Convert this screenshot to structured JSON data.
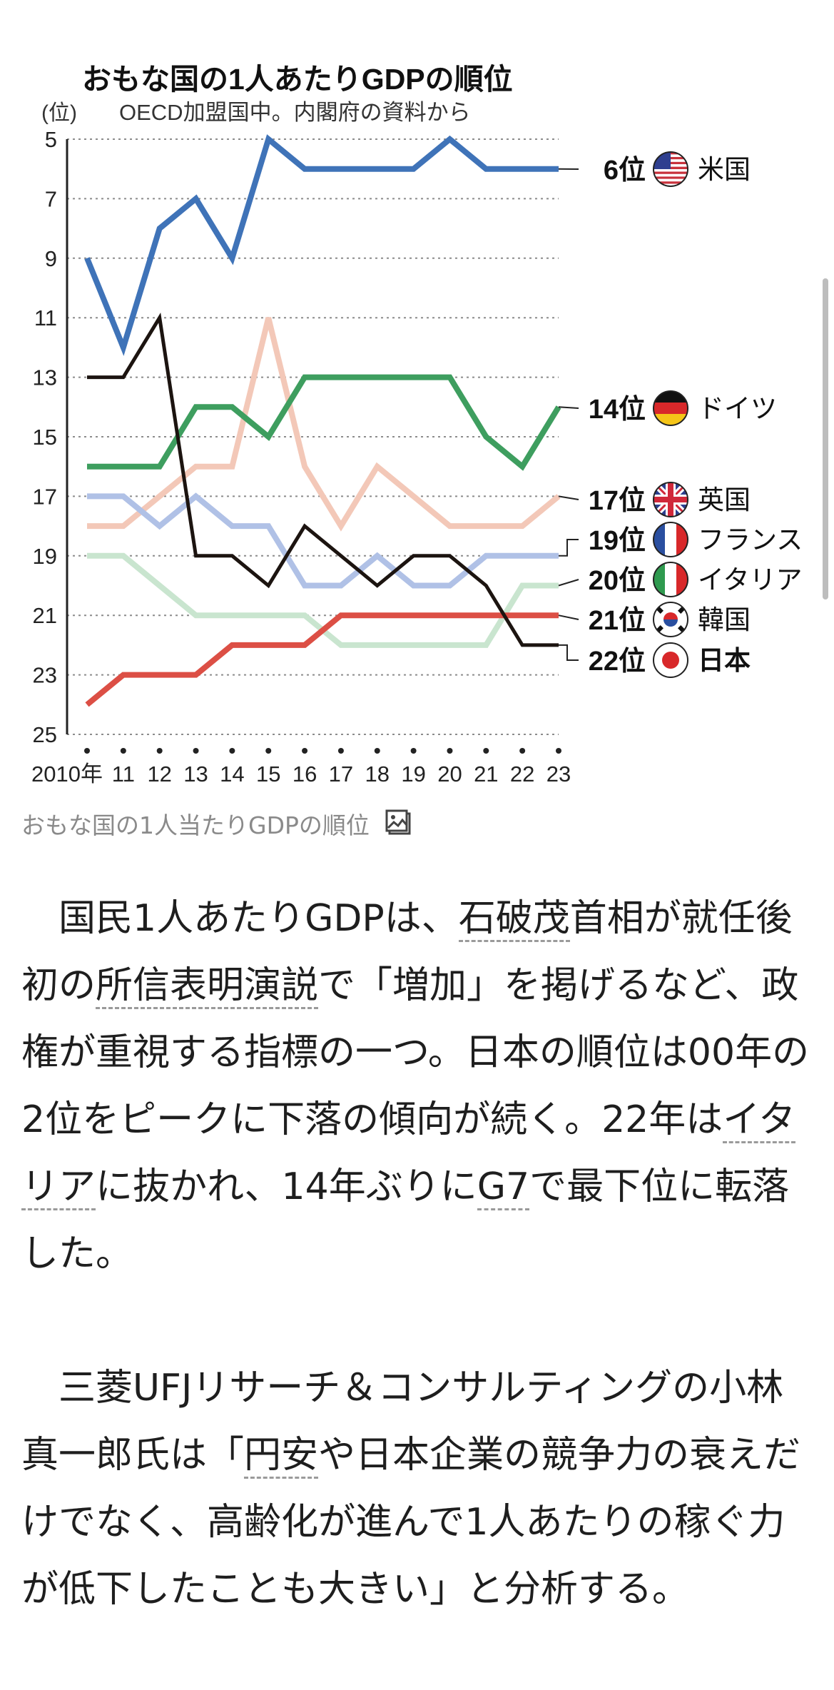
{
  "chart_data": {
    "type": "line",
    "title": "おもな国の1人あたりGDPの順位",
    "subtitle": "OECD加盟国中。内閣府の資料から",
    "ylabel": "(位)",
    "xlabel": "",
    "y_inverted": true,
    "ylim": [
      25,
      5
    ],
    "yticks": [
      5,
      7,
      9,
      11,
      13,
      15,
      17,
      19,
      21,
      23,
      25
    ],
    "x": [
      2010,
      2011,
      2012,
      2013,
      2014,
      2015,
      2016,
      2017,
      2018,
      2019,
      2020,
      2021,
      2022,
      2023
    ],
    "xtick_labels": [
      "2010年",
      "11",
      "12",
      "13",
      "14",
      "15",
      "16",
      "17",
      "18",
      "19",
      "20",
      "21",
      "22",
      "23"
    ],
    "grid": "horizontal-dotted",
    "series": [
      {
        "name": "米国",
        "rank_label": "6位",
        "color": "#3f73b8",
        "flag": "us-flag-icon",
        "values": [
          9,
          12,
          8,
          7,
          9,
          5,
          6,
          6,
          6,
          6,
          5,
          6,
          6,
          6
        ]
      },
      {
        "name": "ドイツ",
        "rank_label": "14位",
        "color": "#3e9e5f",
        "flag": "germany-flag-icon",
        "values": [
          16,
          16,
          16,
          14,
          14,
          15,
          13,
          13,
          13,
          13,
          13,
          15,
          16,
          14
        ]
      },
      {
        "name": "英国",
        "rank_label": "17位",
        "color": "#f3c8b8",
        "flag": "uk-flag-icon",
        "values": [
          18,
          18,
          17,
          16,
          16,
          11,
          16,
          18,
          16,
          17,
          18,
          18,
          18,
          17
        ]
      },
      {
        "name": "フランス",
        "rank_label": "19位",
        "color": "#b0c1e6",
        "flag": "france-flag-icon",
        "values": [
          17,
          17,
          18,
          17,
          18,
          18,
          20,
          20,
          19,
          20,
          20,
          19,
          19,
          19
        ]
      },
      {
        "name": "イタリア",
        "rank_label": "20位",
        "color": "#c9e5cf",
        "flag": "italy-flag-icon",
        "values": [
          19,
          19,
          20,
          21,
          21,
          21,
          21,
          22,
          22,
          22,
          22,
          22,
          20,
          20
        ]
      },
      {
        "name": "韓国",
        "rank_label": "21位",
        "color": "#dc4f45",
        "flag": "korea-flag-icon",
        "values": [
          24,
          23,
          23,
          23,
          22,
          22,
          22,
          21,
          21,
          21,
          21,
          21,
          21,
          21
        ]
      },
      {
        "name": "日本",
        "rank_label": "22位",
        "color": "#1c1410",
        "flag": "japan-flag-icon",
        "values": [
          13,
          13,
          11,
          19,
          19,
          20,
          18,
          19,
          20,
          19,
          19,
          20,
          22,
          22
        ]
      }
    ]
  },
  "caption": {
    "text": "おもな国の1人当たりGDPの順位",
    "icon": "image-icon"
  },
  "article": {
    "paragraphs": [
      [
        {
          "t": "国民1人あたりGDPは、"
        },
        {
          "t": "石破茂",
          "link": true
        },
        {
          "t": "首相が就任後初の"
        },
        {
          "t": "所信表明演説",
          "link": true
        },
        {
          "t": "で「増加」を掲げるなど、政権が重視する指標の一つ。日本の順位は00年の2位をピークに下落の傾向が続く。22年は"
        },
        {
          "t": "イタリア",
          "link": true
        },
        {
          "t": "に抜かれ、14年ぶりに"
        },
        {
          "t": "G7",
          "link": true
        },
        {
          "t": "で最下位に転落した。"
        }
      ],
      [
        {
          "t": "三菱UFJリサーチ＆コンサルティングの小林真一郎氏は「"
        },
        {
          "t": "円安",
          "link": true
        },
        {
          "t": "や日本企業の競争力の衰えだけでなく、高齢化が進んで1人あたりの稼ぐ力が低下したことも大きい」と分析する。"
        }
      ]
    ]
  }
}
